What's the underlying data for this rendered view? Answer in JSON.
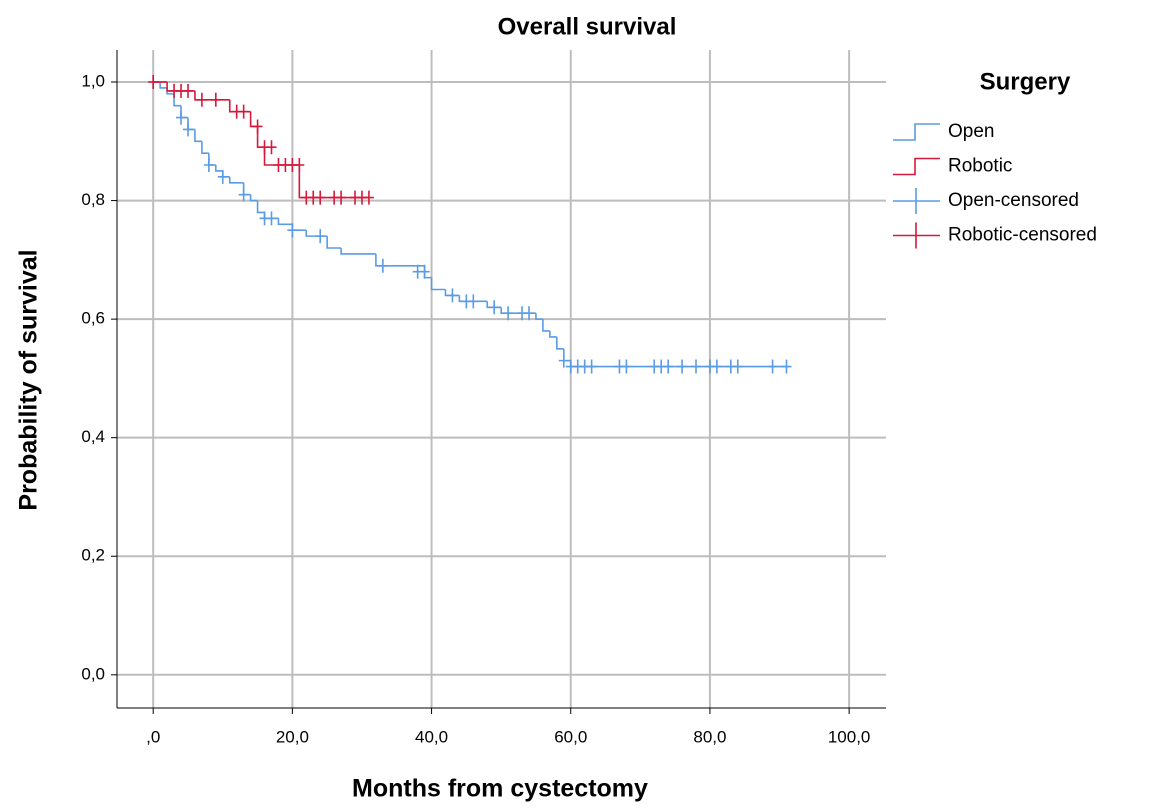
{
  "chart_data": {
    "type": "line",
    "drawstyle": "steps-post",
    "title": "Overall survival",
    "x_label": "Months from cystectomy",
    "y_label": "Probability of survival",
    "legend_title": "Surgery",
    "legend": "right",
    "grid": true,
    "xlim": [
      -5.2,
      105.3
    ],
    "ylim": [
      -0.056,
      1.054
    ],
    "xticks": [
      {
        "value": 0,
        "label": ",0"
      },
      {
        "value": 20,
        "label": "20,0"
      },
      {
        "value": 40,
        "label": "40,0"
      },
      {
        "value": 60,
        "label": "60,0"
      },
      {
        "value": 80,
        "label": "80,0"
      },
      {
        "value": 100,
        "label": "100,0"
      }
    ],
    "yticks": [
      {
        "value": 0,
        "label": "0,0"
      },
      {
        "value": 0.2,
        "label": "0,2"
      },
      {
        "value": 0.4,
        "label": "0,4"
      },
      {
        "value": 0.6,
        "label": "0,6"
      },
      {
        "value": 0.8,
        "label": "0,8"
      },
      {
        "value": 1.0,
        "label": "1,0"
      }
    ],
    "series": [
      {
        "name": "Open",
        "kind": "step",
        "color": "#5a9be6",
        "x": [
          0,
          1,
          2,
          3,
          4,
          5,
          6,
          7,
          8,
          9,
          10,
          11,
          13,
          14,
          15,
          16,
          18,
          20,
          22,
          25,
          27,
          32,
          39,
          40,
          42,
          44,
          48,
          50,
          55,
          56,
          57,
          58,
          59,
          60,
          91
        ],
        "values": [
          1.0,
          0.99,
          0.98,
          0.96,
          0.94,
          0.92,
          0.9,
          0.88,
          0.86,
          0.85,
          0.84,
          0.83,
          0.81,
          0.8,
          0.78,
          0.77,
          0.76,
          0.75,
          0.74,
          0.72,
          0.71,
          0.69,
          0.67,
          0.65,
          0.64,
          0.63,
          0.62,
          0.61,
          0.6,
          0.58,
          0.57,
          0.55,
          0.53,
          0.52,
          0.52
        ]
      },
      {
        "name": "Robotic",
        "kind": "step",
        "color": "#d6183c",
        "x": [
          0,
          2,
          6,
          11,
          14,
          15,
          16,
          21,
          31
        ],
        "values": [
          1.0,
          0.985,
          0.97,
          0.95,
          0.925,
          0.89,
          0.86,
          0.805,
          0.805
        ]
      },
      {
        "name": "Open-censored",
        "kind": "censor",
        "color": "#5a9be6",
        "x": [
          4,
          5,
          8,
          10,
          13,
          16,
          17,
          20,
          24,
          33,
          38,
          39,
          43,
          45,
          46,
          49,
          51,
          53,
          54,
          59,
          60,
          61,
          62,
          63,
          67,
          68,
          72,
          73,
          74,
          76,
          78,
          80,
          81,
          83,
          84,
          89,
          91
        ],
        "values": [
          0.94,
          0.92,
          0.86,
          0.84,
          0.81,
          0.77,
          0.77,
          0.75,
          0.74,
          0.69,
          0.68,
          0.68,
          0.64,
          0.63,
          0.63,
          0.62,
          0.61,
          0.61,
          0.61,
          0.53,
          0.52,
          0.52,
          0.52,
          0.52,
          0.52,
          0.52,
          0.52,
          0.52,
          0.52,
          0.52,
          0.52,
          0.52,
          0.52,
          0.52,
          0.52,
          0.52,
          0.52
        ]
      },
      {
        "name": "Robotic-censored",
        "kind": "censor",
        "color": "#d6183c",
        "x": [
          0,
          3,
          4,
          5,
          7,
          9,
          12,
          13,
          15,
          16,
          17,
          18,
          19,
          20,
          21,
          22,
          23,
          24,
          26,
          27,
          29,
          30,
          31
        ],
        "values": [
          1.0,
          0.985,
          0.985,
          0.985,
          0.97,
          0.97,
          0.95,
          0.95,
          0.925,
          0.89,
          0.89,
          0.86,
          0.86,
          0.86,
          0.86,
          0.805,
          0.805,
          0.805,
          0.805,
          0.805,
          0.805,
          0.805,
          0.805
        ]
      }
    ]
  }
}
